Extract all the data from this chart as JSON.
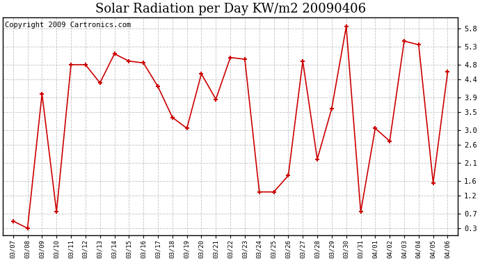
{
  "title": "Solar Radiation per Day KW/m2 20090406",
  "copyright": "Copyright 2009 Cartronics.com",
  "dates": [
    "03/07",
    "03/08",
    "03/09",
    "03/10",
    "03/11",
    "03/12",
    "03/13",
    "03/14",
    "03/15",
    "03/16",
    "03/17",
    "03/18",
    "03/19",
    "03/20",
    "03/21",
    "03/22",
    "03/23",
    "03/24",
    "03/25",
    "03/26",
    "03/27",
    "03/28",
    "03/29",
    "03/30",
    "03/31",
    "04/01",
    "04/02",
    "04/03",
    "04/04",
    "04/05",
    "04/06"
  ],
  "values": [
    0.5,
    0.3,
    4.0,
    0.75,
    4.8,
    4.8,
    4.3,
    5.1,
    4.9,
    4.85,
    4.2,
    3.35,
    3.05,
    4.55,
    3.85,
    5.0,
    4.95,
    1.3,
    1.3,
    1.75,
    4.9,
    2.2,
    3.6,
    5.85,
    0.75,
    3.05,
    2.7,
    5.45,
    5.35,
    1.55,
    4.6
  ],
  "line_color": "#cc0000",
  "marker": "+",
  "bg_color": "#ffffff",
  "plot_bg_color": "#ffffff",
  "grid_color": "#bbbbbb",
  "y_ticks": [
    0.3,
    0.7,
    1.2,
    1.6,
    2.1,
    2.6,
    3.0,
    3.5,
    3.9,
    4.4,
    4.8,
    5.3,
    5.8
  ],
  "ylim_min": 0.1,
  "ylim_max": 6.1,
  "title_fontsize": 13,
  "copyright_fontsize": 7.5
}
